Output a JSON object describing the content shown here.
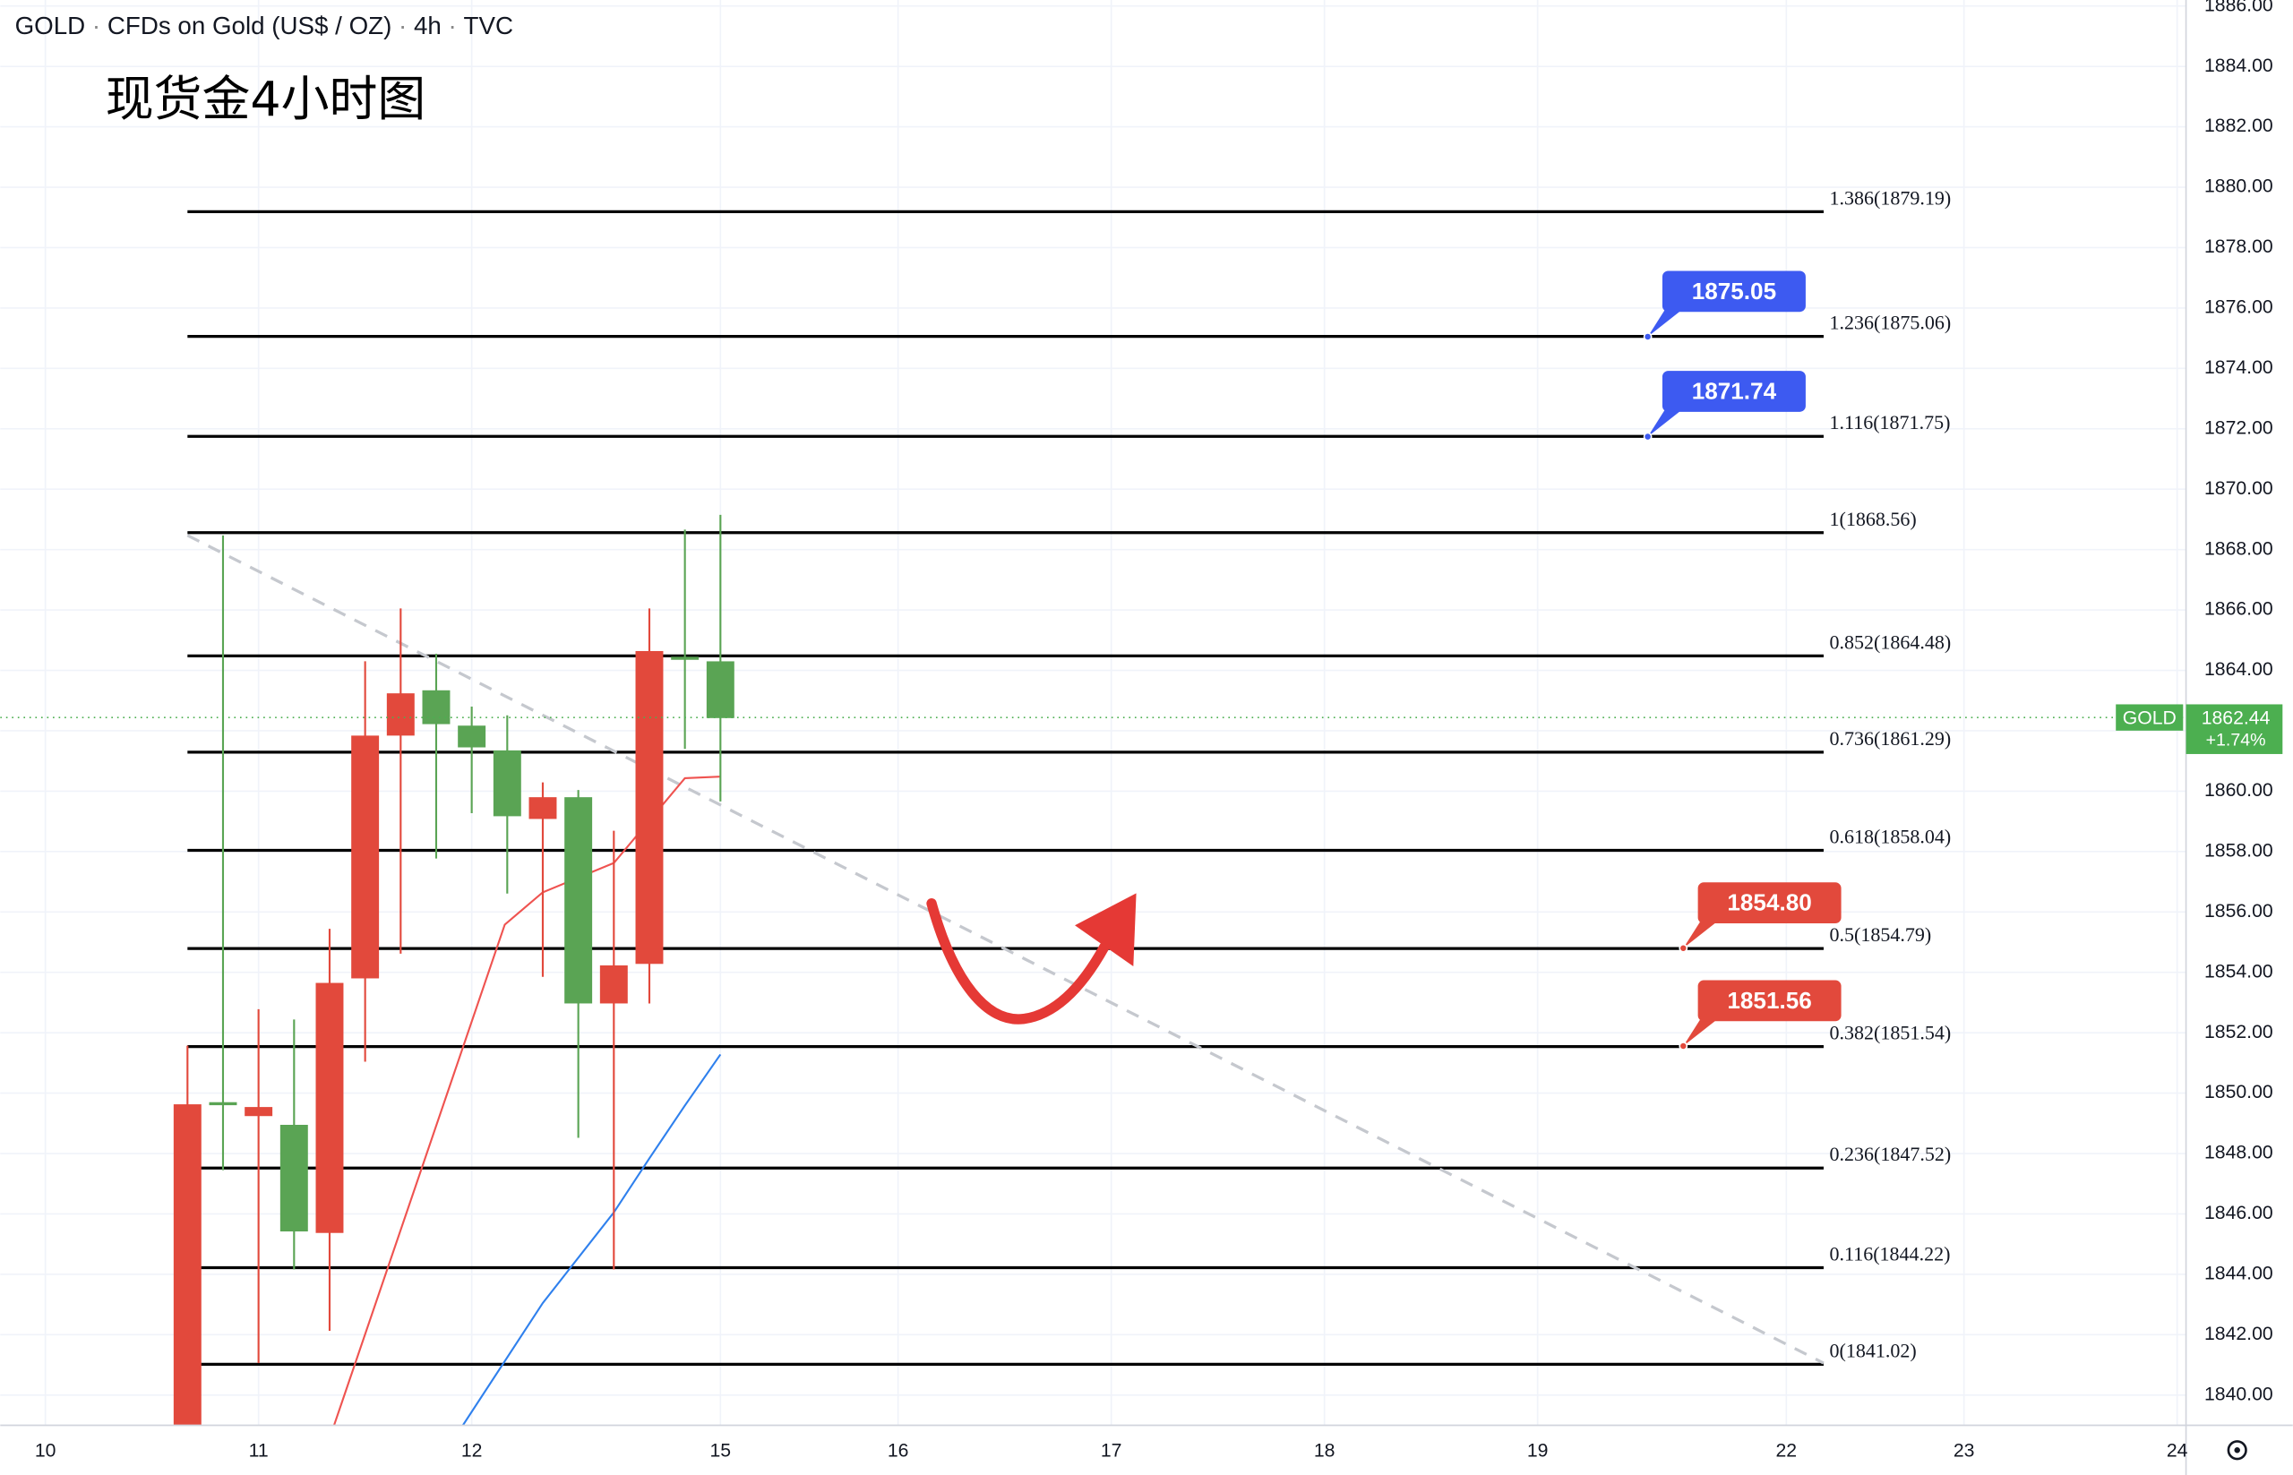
{
  "header": {
    "symbol": "GOLD",
    "name": "CFDs on Gold (US$ / OZ)",
    "interval": "4h",
    "source": "TVC"
  },
  "chart_data": {
    "type": "candlestick",
    "title": "现货金4小时图",
    "x": [
      0,
      1,
      2,
      3,
      4,
      5,
      6,
      7,
      8,
      9,
      10,
      11,
      12,
      13,
      14,
      15
    ],
    "open": [
      1849.63,
      1849.6,
      1849.54,
      1845.42,
      1853.65,
      1861.84,
      1863.24,
      1862.22,
      1861.45,
      1859.17,
      1859.8,
      1852.97,
      1854.23,
      1864.64,
      1864.35,
      1862.42
    ],
    "high": [
      1851.57,
      1868.47,
      1852.78,
      1852.44,
      1855.44,
      1864.3,
      1866.05,
      1864.55,
      1862.8,
      1862.51,
      1860.29,
      1860.04,
      1858.69,
      1866.05,
      1868.66,
      1869.15
    ],
    "low": [
      1838.5,
      1847.45,
      1841.06,
      1844.16,
      1842.13,
      1851.04,
      1854.62,
      1857.77,
      1859.27,
      1856.61,
      1853.85,
      1848.52,
      1844.16,
      1852.97,
      1861.4,
      1859.66
    ],
    "close": [
      1838.8,
      1849.7,
      1849.24,
      1848.95,
      1845.37,
      1853.8,
      1861.84,
      1863.34,
      1862.17,
      1861.35,
      1859.08,
      1859.8,
      1852.97,
      1854.28,
      1864.45,
      1864.3
    ],
    "up_color": "#5aa454",
    "down_color": "#e2493c",
    "lines": [
      {
        "color": "#ef5350",
        "x": [
          4.12,
          8.93,
          10,
          12,
          14,
          15
        ],
        "values": [
          1838.98,
          1855.58,
          1856.65,
          1857.62,
          1860.43,
          1860.48
        ]
      },
      {
        "color": "#2f80ed",
        "x": [
          7.74,
          10,
          12,
          13,
          14,
          15
        ],
        "values": [
          1838.98,
          1843.05,
          1846.05,
          1847.84,
          1849.59,
          1851.28
        ]
      }
    ],
    "fib_x": [
      0,
      46.05
    ],
    "fib_levels": [
      {
        "label": "1.386(1879.19)",
        "value": 1879.19
      },
      {
        "label": "1.236(1875.06)",
        "value": 1875.06
      },
      {
        "label": "1.116(1871.75)",
        "value": 1871.75
      },
      {
        "label": "1(1868.56)",
        "value": 1868.56
      },
      {
        "label": "0.852(1864.48)",
        "value": 1864.48
      },
      {
        "label": "0.736(1861.29)",
        "value": 1861.29
      },
      {
        "label": "0.618(1858.04)",
        "value": 1858.04
      },
      {
        "label": "0.5(1854.79)",
        "value": 1854.79
      },
      {
        "label": "0.382(1851.54)",
        "value": 1851.54
      },
      {
        "label": "0.236(1847.52)",
        "value": 1847.52
      },
      {
        "label": "0.116(1844.22)",
        "value": 1844.22
      },
      {
        "label": "0(1841.02)",
        "value": 1841.02
      }
    ],
    "trendline": {
      "x": [
        0,
        46.05
      ],
      "values": [
        1868.47,
        1841.06
      ]
    },
    "badges": [
      {
        "value": 1875.05,
        "x": 41.1,
        "color": "#3d5af1"
      },
      {
        "value": 1871.74,
        "x": 41.1,
        "color": "#3d5af1"
      },
      {
        "value": 1854.8,
        "label": "1854.80",
        "x": 42.1,
        "color": "#e2493c"
      },
      {
        "value": 1851.56,
        "x": 42.1,
        "color": "#e2493c"
      }
    ],
    "current": {
      "symbol": "GOLD",
      "value": 1862.44,
      "change": "+1.74%",
      "color": "#4caf50"
    },
    "xlim": [
      -5.27,
      56.25
    ],
    "ylim": [
      1839,
      1886.2
    ],
    "xticks": [
      {
        "value": -4,
        "label": "10"
      },
      {
        "value": 2,
        "label": "11"
      },
      {
        "value": 8,
        "label": "12"
      },
      {
        "value": 15,
        "label": "15"
      },
      {
        "value": 20,
        "label": "16"
      },
      {
        "value": 26,
        "label": "17"
      },
      {
        "value": 32,
        "label": "18"
      },
      {
        "value": 38,
        "label": "19"
      },
      {
        "value": 45,
        "label": "22"
      },
      {
        "value": 50,
        "label": "23"
      },
      {
        "value": 56,
        "label": "24"
      }
    ],
    "yticks": [
      {
        "value": 1840,
        "label": "1840.00"
      },
      {
        "value": 1842,
        "label": "1842.00"
      },
      {
        "value": 1844,
        "label": "1844.00"
      },
      {
        "value": 1846,
        "label": "1846.00"
      },
      {
        "value": 1848,
        "label": "1848.00"
      },
      {
        "value": 1850,
        "label": "1850.00"
      },
      {
        "value": 1852,
        "label": "1852.00"
      },
      {
        "value": 1854,
        "label": "1854.00"
      },
      {
        "value": 1856,
        "label": "1856.00"
      },
      {
        "value": 1858,
        "label": "1858.00"
      },
      {
        "value": 1860,
        "label": "1860.00"
      },
      {
        "value": 1862,
        "label": "1862.00"
      },
      {
        "value": 1864,
        "label": "1864.00"
      },
      {
        "value": 1866,
        "label": "1866.00"
      },
      {
        "value": 1868,
        "label": "1868.00"
      },
      {
        "value": 1870,
        "label": "1870.00"
      },
      {
        "value": 1872,
        "label": "1872.00"
      },
      {
        "value": 1874,
        "label": "1874.00"
      },
      {
        "value": 1876,
        "label": "1876.00"
      },
      {
        "value": 1878,
        "label": "1878.00"
      },
      {
        "value": 1880,
        "label": "1880.00"
      },
      {
        "value": 1882,
        "label": "1882.00"
      },
      {
        "value": 1884,
        "label": "1884.00"
      },
      {
        "value": 1886,
        "label": "1886.00"
      }
    ],
    "grid": true
  }
}
